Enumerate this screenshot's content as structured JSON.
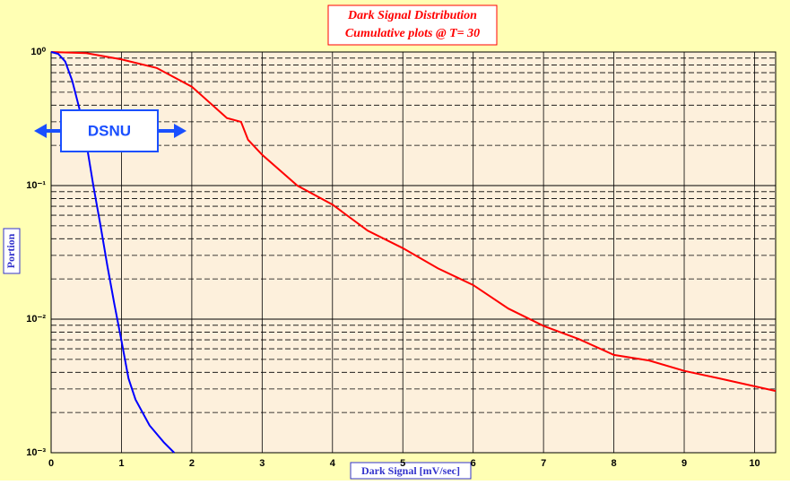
{
  "chart_data": {
    "type": "line",
    "title": "Dark Signal Distribution",
    "subtitle": "Cumulative plots @ T= 30",
    "x_label": "Dark Signal [mV/sec]",
    "y_label": "Portion",
    "annotation": "DSNU",
    "log_y": true,
    "grid": true,
    "xlim": [
      0,
      10.3
    ],
    "xticks": [
      0,
      1,
      2,
      3,
      4,
      5,
      6,
      7,
      8,
      9,
      10
    ],
    "ylim": [
      0.001,
      1
    ],
    "yticks": [
      {
        "value": 1,
        "label": "10⁰"
      },
      {
        "value": 0.1,
        "label": "10⁻¹"
      },
      {
        "value": 0.01,
        "label": "10⁻²"
      },
      {
        "value": 0.001,
        "label": "10⁻³"
      }
    ],
    "yminor": [
      0.2,
      0.3,
      0.4,
      0.5,
      0.6,
      0.7,
      0.8,
      0.9,
      0.02,
      0.03,
      0.04,
      0.05,
      0.06,
      0.07,
      0.08,
      0.09,
      0.002,
      0.003,
      0.004,
      0.005,
      0.006,
      0.007,
      0.008,
      0.009
    ],
    "series": [
      {
        "color": "#ff0000",
        "x": [
          0,
          0.5,
          1.0,
          1.5,
          2.0,
          2.5,
          2.7,
          2.8,
          3.0,
          3.5,
          4.0,
          4.5,
          5.0,
          5.5,
          6.0,
          6.5,
          7.0,
          7.5,
          8.0,
          8.5,
          9.0,
          9.5,
          10.3
        ],
        "values": [
          1.0,
          0.98,
          0.88,
          0.76,
          0.55,
          0.32,
          0.3,
          0.22,
          0.17,
          0.1,
          0.072,
          0.046,
          0.034,
          0.024,
          0.018,
          0.012,
          0.0089,
          0.0071,
          0.0054,
          0.0049,
          0.0041,
          0.0036,
          0.0029
        ]
      },
      {
        "color": "#0000ff",
        "x": [
          0,
          0.1,
          0.2,
          0.3,
          0.4,
          0.5,
          0.6,
          0.7,
          0.8,
          0.9,
          1.0,
          1.1,
          1.2,
          1.4,
          1.6,
          1.75
        ],
        "values": [
          1.0,
          0.97,
          0.85,
          0.61,
          0.38,
          0.21,
          0.1,
          0.051,
          0.025,
          0.0129,
          0.0069,
          0.0036,
          0.0025,
          0.0016,
          0.0012,
          0.001
        ]
      }
    ]
  }
}
